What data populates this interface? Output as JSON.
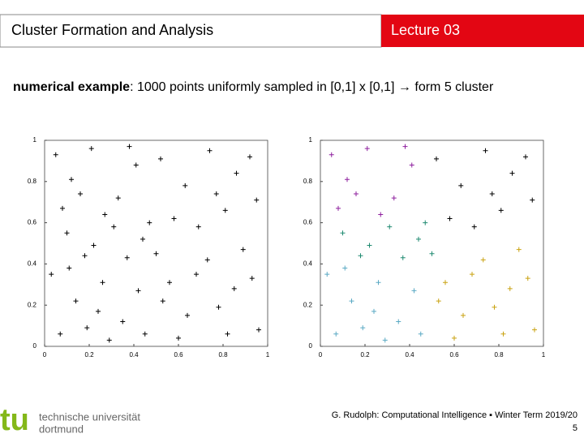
{
  "header": {
    "title": "Cluster Formation  and  Analysis",
    "lecture": "Lecture 03"
  },
  "subtitle": {
    "bold": "numerical example",
    "text": ":  1000 points uniformly sampled in [0,1] x [0,1]  →  form 5 cluster"
  },
  "chart_data": [
    {
      "type": "scatter",
      "xlim": [
        0,
        1
      ],
      "ylim": [
        0,
        1
      ],
      "xticks": [
        0,
        0.2,
        0.4,
        0.6,
        0.8,
        1
      ],
      "yticks": [
        0,
        0.2,
        0.4,
        0.6,
        0.8,
        1
      ],
      "series": [
        {
          "color": "#000000",
          "x": [
            0.05,
            0.12,
            0.21,
            0.33,
            0.41,
            0.08,
            0.27,
            0.38,
            0.16,
            0.52,
            0.63,
            0.74,
            0.86,
            0.95,
            0.58,
            0.69,
            0.81,
            0.92,
            0.77,
            0.1,
            0.22,
            0.31,
            0.44,
            0.5,
            0.37,
            0.18,
            0.47,
            0.03,
            0.14,
            0.26,
            0.35,
            0.07,
            0.19,
            0.42,
            0.29,
            0.11,
            0.45,
            0.24,
            0.56,
            0.64,
            0.73,
            0.85,
            0.96,
            0.6,
            0.78,
            0.89,
            0.68,
            0.93,
            0.53,
            0.82
          ],
          "values": [
            0.93,
            0.81,
            0.96,
            0.72,
            0.88,
            0.67,
            0.64,
            0.97,
            0.74,
            0.91,
            0.78,
            0.95,
            0.84,
            0.71,
            0.62,
            0.58,
            0.66,
            0.92,
            0.74,
            0.55,
            0.49,
            0.58,
            0.52,
            0.45,
            0.43,
            0.44,
            0.6,
            0.35,
            0.22,
            0.31,
            0.12,
            0.06,
            0.09,
            0.27,
            0.03,
            0.38,
            0.06,
            0.17,
            0.31,
            0.15,
            0.42,
            0.28,
            0.08,
            0.04,
            0.19,
            0.47,
            0.35,
            0.33,
            0.22,
            0.06
          ]
        }
      ]
    },
    {
      "type": "scatter",
      "xlim": [
        0,
        1
      ],
      "ylim": [
        0,
        1
      ],
      "xticks": [
        0,
        0.2,
        0.4,
        0.6,
        0.8,
        1
      ],
      "yticks": [
        0,
        0.2,
        0.4,
        0.6,
        0.8,
        1
      ],
      "series": [
        {
          "color": "#8e1f9e",
          "x": [
            0.05,
            0.12,
            0.21,
            0.33,
            0.41,
            0.08,
            0.27,
            0.38,
            0.16
          ],
          "values": [
            0.93,
            0.81,
            0.96,
            0.72,
            0.88,
            0.67,
            0.64,
            0.97,
            0.74
          ]
        },
        {
          "color": "#000000",
          "x": [
            0.52,
            0.63,
            0.74,
            0.86,
            0.95,
            0.58,
            0.69,
            0.81,
            0.92,
            0.77
          ],
          "values": [
            0.91,
            0.78,
            0.95,
            0.84,
            0.71,
            0.62,
            0.58,
            0.66,
            0.92,
            0.74
          ]
        },
        {
          "color": "#1f8a70",
          "x": [
            0.1,
            0.22,
            0.31,
            0.44,
            0.5,
            0.37,
            0.18,
            0.47
          ],
          "values": [
            0.55,
            0.49,
            0.58,
            0.52,
            0.45,
            0.43,
            0.44,
            0.6
          ]
        },
        {
          "color": "#5aa9c4",
          "x": [
            0.03,
            0.14,
            0.26,
            0.35,
            0.07,
            0.19,
            0.42,
            0.29,
            0.11,
            0.45,
            0.24
          ],
          "values": [
            0.35,
            0.22,
            0.31,
            0.12,
            0.06,
            0.09,
            0.27,
            0.03,
            0.38,
            0.06,
            0.17
          ]
        },
        {
          "color": "#c9a210",
          "x": [
            0.56,
            0.64,
            0.73,
            0.85,
            0.96,
            0.6,
            0.78,
            0.89,
            0.68,
            0.93,
            0.53,
            0.82
          ],
          "values": [
            0.31,
            0.15,
            0.42,
            0.28,
            0.08,
            0.04,
            0.19,
            0.47,
            0.35,
            0.33,
            0.22,
            0.06
          ]
        }
      ]
    }
  ],
  "footer": {
    "logo_mark": "tu",
    "logo_line1": "technische universität",
    "logo_line2": "dortmund",
    "credit": "G. Rudolph: Computational Intelligence ▪ Winter Term 2019/20",
    "page": "5"
  }
}
